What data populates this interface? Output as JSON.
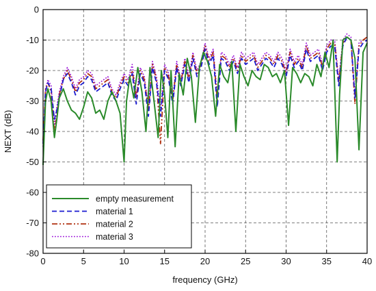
{
  "chart_data": {
    "type": "line",
    "title": "",
    "xlabel": "frequency (GHz)",
    "ylabel": "NEXT (dB)",
    "xlim": [
      0,
      40
    ],
    "ylim": [
      -80,
      0
    ],
    "xticks": [
      0,
      5,
      10,
      15,
      20,
      25,
      30,
      35,
      40
    ],
    "yticks": [
      0,
      -10,
      -20,
      -30,
      -40,
      -50,
      -60,
      -70,
      -80
    ],
    "grid": true,
    "legend_position": "bottom-left",
    "series": [
      {
        "name": "empty measurement",
        "color": "#2a8a2a",
        "dash": "solid",
        "x": [
          0,
          0.3,
          0.6,
          1.0,
          1.4,
          1.7,
          2.0,
          2.5,
          3.0,
          3.5,
          4.0,
          4.5,
          5.0,
          5.5,
          6.0,
          6.5,
          7.0,
          7.5,
          8.0,
          8.5,
          9.0,
          9.5,
          10.0,
          10.3,
          10.7,
          11.2,
          11.7,
          12.2,
          12.7,
          13.2,
          13.7,
          14.2,
          14.6,
          15.0,
          15.4,
          15.8,
          16.3,
          16.8,
          17.3,
          17.8,
          18.3,
          18.8,
          19.3,
          19.8,
          20.3,
          20.8,
          21.3,
          21.8,
          22.3,
          22.8,
          23.3,
          23.8,
          24.3,
          24.8,
          25.3,
          25.8,
          26.3,
          26.8,
          27.3,
          27.8,
          28.3,
          28.8,
          29.3,
          29.8,
          30.3,
          30.8,
          31.3,
          31.8,
          32.3,
          32.8,
          33.3,
          33.8,
          34.3,
          34.8,
          35.3,
          35.8,
          36.3,
          36.6,
          37.0,
          37.5,
          38.0,
          38.5,
          39.0,
          39.5,
          40.0
        ],
        "y": [
          -51,
          -30,
          -26,
          -30,
          -42,
          -36,
          -29,
          -26,
          -30,
          -33,
          -34,
          -36,
          -32,
          -27,
          -29,
          -34,
          -33,
          -36,
          -30,
          -27,
          -30,
          -34,
          -50,
          -30,
          -22,
          -29,
          -19,
          -27,
          -40,
          -19,
          -30,
          -42,
          -20,
          -28,
          -42,
          -20,
          -45,
          -21,
          -28,
          -16,
          -22,
          -37,
          -19,
          -14,
          -17,
          -22,
          -35,
          -18,
          -22,
          -24,
          -17,
          -40,
          -18,
          -22,
          -25,
          -20,
          -22,
          -23,
          -18,
          -19,
          -22,
          -21,
          -24,
          -20,
          -38,
          -19,
          -21,
          -24,
          -21,
          -22,
          -25,
          -18,
          -22,
          -14,
          -19,
          -10,
          -50,
          -28,
          -10,
          -9,
          -10,
          -16,
          -46,
          -14,
          -11
        ]
      },
      {
        "name": "material 1",
        "color": "#1a1ad0",
        "dash": "dashed",
        "x": [
          0,
          0.3,
          0.6,
          1.0,
          1.4,
          1.7,
          2.0,
          2.5,
          3.0,
          3.5,
          4.0,
          4.5,
          5.0,
          5.5,
          6.0,
          6.5,
          7.0,
          7.5,
          8.0,
          8.5,
          9.0,
          9.5,
          10.0,
          10.5,
          11.0,
          11.5,
          12.0,
          12.5,
          13.0,
          13.5,
          14.0,
          14.5,
          15.0,
          15.5,
          16.0,
          16.5,
          17.0,
          17.5,
          18.0,
          18.5,
          19.0,
          19.5,
          20.0,
          20.5,
          21.0,
          21.5,
          22.0,
          22.5,
          23.0,
          23.5,
          24.0,
          24.5,
          25.0,
          25.5,
          26.0,
          26.5,
          27.0,
          27.5,
          28.0,
          28.5,
          29.0,
          29.5,
          30.0,
          30.5,
          31.0,
          31.5,
          32.0,
          32.5,
          33.0,
          33.5,
          34.0,
          34.5,
          35.0,
          35.5,
          36.0,
          36.5,
          37.0,
          37.5,
          38.0,
          38.5,
          39.0,
          39.5,
          40.0
        ],
        "y": [
          -44,
          -27,
          -24,
          -26,
          -36,
          -33,
          -29,
          -23,
          -21,
          -24,
          -28,
          -25,
          -24,
          -22,
          -23,
          -27,
          -26,
          -25,
          -24,
          -28,
          -30,
          -26,
          -23,
          -25,
          -21,
          -31,
          -21,
          -24,
          -35,
          -19,
          -24,
          -35,
          -20,
          -23,
          -31,
          -19,
          -25,
          -18,
          -24,
          -16,
          -22,
          -19,
          -13,
          -18,
          -15,
          -32,
          -16,
          -17,
          -20,
          -17,
          -21,
          -16,
          -18,
          -17,
          -16,
          -20,
          -18,
          -16,
          -17,
          -19,
          -16,
          -18,
          -22,
          -15,
          -19,
          -17,
          -20,
          -13,
          -17,
          -16,
          -15,
          -20,
          -14,
          -12,
          -12,
          -25,
          -12,
          -9,
          -10,
          -29,
          -13,
          -11,
          -10
        ]
      },
      {
        "name": "material 2",
        "color": "#b03010",
        "dash": "dashdot",
        "x": [
          0,
          0.3,
          0.6,
          1.0,
          1.4,
          1.7,
          2.0,
          2.5,
          3.0,
          3.5,
          4.0,
          4.5,
          5.0,
          5.5,
          6.0,
          6.5,
          7.0,
          7.5,
          8.0,
          8.5,
          9.0,
          9.5,
          10.0,
          10.5,
          11.0,
          11.5,
          12.0,
          12.5,
          13.0,
          13.5,
          14.0,
          14.5,
          15.0,
          15.5,
          16.0,
          16.5,
          17.0,
          17.5,
          18.0,
          18.5,
          19.0,
          19.5,
          20.0,
          20.5,
          21.0,
          21.5,
          22.0,
          22.5,
          23.0,
          23.5,
          24.0,
          24.5,
          25.0,
          25.5,
          26.0,
          26.5,
          27.0,
          27.5,
          28.0,
          28.5,
          29.0,
          29.5,
          30.0,
          30.5,
          31.0,
          31.5,
          32.0,
          32.5,
          33.0,
          33.5,
          34.0,
          34.5,
          35.0,
          35.5,
          36.0,
          36.5,
          37.0,
          37.5,
          38.0,
          38.5,
          39.0,
          39.5,
          40.0
        ],
        "y": [
          -43,
          -26,
          -24,
          -27,
          -40,
          -35,
          -28,
          -23,
          -20,
          -23,
          -27,
          -24,
          -23,
          -21,
          -22,
          -26,
          -25,
          -24,
          -23,
          -27,
          -29,
          -25,
          -22,
          -24,
          -20,
          -29,
          -20,
          -23,
          -33,
          -18,
          -23,
          -44,
          -19,
          -22,
          -30,
          -18,
          -24,
          -17,
          -23,
          -15,
          -21,
          -18,
          -12,
          -17,
          -14,
          -30,
          -15,
          -16,
          -19,
          -16,
          -20,
          -15,
          -17,
          -16,
          -15,
          -19,
          -17,
          -15,
          -16,
          -18,
          -15,
          -17,
          -21,
          -14,
          -18,
          -16,
          -19,
          -12,
          -16,
          -15,
          -14,
          -19,
          -13,
          -11,
          -11,
          -24,
          -11,
          -9,
          -10,
          -31,
          -12,
          -10,
          -9
        ]
      },
      {
        "name": "material 3",
        "color": "#9a10d8",
        "dash": "dotted",
        "x": [
          0,
          0.3,
          0.6,
          1.0,
          1.4,
          1.7,
          2.0,
          2.5,
          3.0,
          3.5,
          4.0,
          4.5,
          5.0,
          5.5,
          6.0,
          6.5,
          7.0,
          7.5,
          8.0,
          8.5,
          9.0,
          9.5,
          10.0,
          10.5,
          11.0,
          11.5,
          12.0,
          12.5,
          13.0,
          13.5,
          14.0,
          14.5,
          15.0,
          15.5,
          16.0,
          16.5,
          17.0,
          17.5,
          18.0,
          18.5,
          19.0,
          19.5,
          20.0,
          20.5,
          21.0,
          21.5,
          22.0,
          22.5,
          23.0,
          23.5,
          24.0,
          24.5,
          25.0,
          25.5,
          26.0,
          26.5,
          27.0,
          27.5,
          28.0,
          28.5,
          29.0,
          29.5,
          30.0,
          30.5,
          31.0,
          31.5,
          32.0,
          32.5,
          33.0,
          33.5,
          34.0,
          34.5,
          35.0,
          35.5,
          36.0,
          36.5,
          37.0,
          37.5,
          38.0,
          38.5,
          39.0,
          39.5,
          40.0
        ],
        "y": [
          -45,
          -26,
          -23,
          -25,
          -38,
          -32,
          -27,
          -22,
          -19,
          -22,
          -26,
          -23,
          -22,
          -20,
          -21,
          -25,
          -24,
          -23,
          -22,
          -26,
          -28,
          -24,
          -21,
          -23,
          -18,
          -28,
          -19,
          -22,
          -32,
          -17,
          -22,
          -33,
          -18,
          -21,
          -29,
          -17,
          -23,
          -16,
          -22,
          -14,
          -20,
          -17,
          -11,
          -16,
          -13,
          -28,
          -14,
          -15,
          -18,
          -15,
          -19,
          -14,
          -16,
          -15,
          -14,
          -18,
          -16,
          -14,
          -15,
          -17,
          -14,
          -16,
          -20,
          -13,
          -17,
          -15,
          -18,
          -11,
          -15,
          -14,
          -13,
          -18,
          -12,
          -10,
          -10,
          -23,
          -10,
          -8,
          -9,
          -28,
          -11,
          -10,
          -9
        ]
      }
    ]
  }
}
